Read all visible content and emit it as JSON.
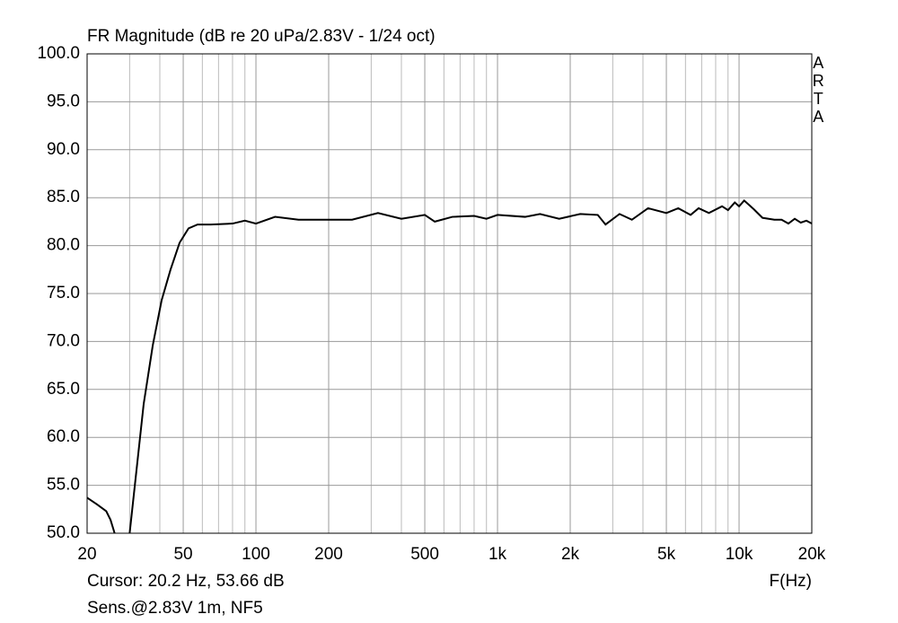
{
  "chart_data": {
    "type": "line",
    "title": "FR Magnitude (dB re 20 uPa/2.83V - 1/24 oct)",
    "x_label": "F(Hz)",
    "annotations": [
      "ARTA",
      "Cursor: 20.2 Hz, 53.66 dB",
      "Sens.@2.83V 1m, NF5"
    ],
    "x_scale": "log",
    "grid": true,
    "xlim": [
      20,
      20000
    ],
    "ylim": [
      50,
      100
    ],
    "xticks": [
      20,
      50,
      100,
      200,
      500,
      {
        "value": 1000,
        "label": "1k"
      },
      {
        "value": 2000,
        "label": "2k"
      },
      {
        "value": 5000,
        "label": "5k"
      },
      {
        "value": 10000,
        "label": "10k"
      },
      {
        "value": 20000,
        "label": "20k"
      }
    ],
    "xminorticks": [
      30,
      40,
      60,
      70,
      80,
      90,
      300,
      400,
      600,
      700,
      800,
      900,
      3000,
      4000,
      6000,
      7000,
      8000,
      9000
    ],
    "yticks": [
      {
        "value": 50,
        "label": "50.0"
      },
      {
        "value": 55,
        "label": "55.0"
      },
      {
        "value": 60,
        "label": "60.0"
      },
      {
        "value": 65,
        "label": "65.0"
      },
      {
        "value": 70,
        "label": "70.0"
      },
      {
        "value": 75,
        "label": "75.0"
      },
      {
        "value": 80,
        "label": "80.0"
      },
      {
        "value": 85,
        "label": "85.0"
      },
      {
        "value": 90,
        "label": "90.0"
      },
      {
        "value": 95,
        "label": "95.0"
      },
      {
        "value": 100,
        "label": "100.0"
      }
    ],
    "x": [
      20,
      22,
      24,
      25,
      26,
      28,
      30,
      34.3,
      37.4,
      40.7,
      44.3,
      48.3,
      52.6,
      57.3,
      65,
      80,
      90,
      100,
      120,
      150,
      200,
      250,
      320,
      400,
      500,
      550,
      650,
      800,
      900,
      1000,
      1300,
      1500,
      1800,
      2200,
      2600,
      2800,
      3200,
      3600,
      4200,
      5000,
      5600,
      6300,
      6800,
      7500,
      8500,
      9000,
      9600,
      10000,
      10500,
      11500,
      12500,
      14000,
      15000,
      16000,
      17000,
      18000,
      19000,
      20000
    ],
    "series": [
      {
        "name": "FR",
        "color": "#000000",
        "values": [
          53.7,
          53.0,
          52.3,
          51.4,
          50.0,
          null,
          50.0,
          63.5,
          69.6,
          74.3,
          77.5,
          80.3,
          81.8,
          82.2,
          82.2,
          82.3,
          82.6,
          82.3,
          83.0,
          82.7,
          82.7,
          82.7,
          83.4,
          82.8,
          83.2,
          82.5,
          83.0,
          83.1,
          82.8,
          83.2,
          83.0,
          83.3,
          82.8,
          83.3,
          83.2,
          82.2,
          83.3,
          82.7,
          83.9,
          83.4,
          83.9,
          83.2,
          83.9,
          83.4,
          84.1,
          83.7,
          84.5,
          84.1,
          84.7,
          83.8,
          82.9,
          82.7,
          82.7,
          82.3,
          82.8,
          82.4,
          82.6,
          82.3
        ]
      }
    ]
  }
}
